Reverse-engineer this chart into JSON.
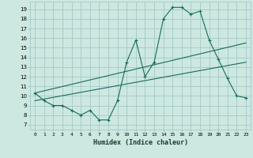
{
  "title": "",
  "xlabel": "Humidex (Indice chaleur)",
  "bg_color": "#cce8e0",
  "grid_color": "#aacccc",
  "line_color": "#1a6b5a",
  "xlim": [
    -0.5,
    23.5
  ],
  "ylim": [
    6.5,
    19.8
  ],
  "yticks": [
    7,
    8,
    9,
    10,
    11,
    12,
    13,
    14,
    15,
    16,
    17,
    18,
    19
  ],
  "xticks": [
    0,
    1,
    2,
    3,
    4,
    5,
    6,
    7,
    8,
    9,
    10,
    11,
    12,
    13,
    14,
    15,
    16,
    17,
    18,
    19,
    20,
    21,
    22,
    23
  ],
  "line1_x": [
    0,
    1,
    2,
    3,
    4,
    5,
    6,
    7,
    8,
    9,
    10,
    11,
    12,
    13,
    14,
    15,
    16,
    17,
    18,
    19,
    20,
    21,
    22,
    23
  ],
  "line1_y": [
    10.3,
    9.5,
    9.0,
    9.0,
    8.5,
    8.0,
    8.5,
    7.5,
    7.5,
    9.5,
    13.5,
    15.8,
    12.0,
    13.5,
    18.0,
    19.2,
    19.2,
    18.5,
    18.8,
    15.8,
    13.8,
    11.8,
    10.0,
    9.8
  ],
  "line2_x": [
    0,
    23
  ],
  "line2_y": [
    10.3,
    15.5
  ],
  "line3_x": [
    0,
    23
  ],
  "line3_y": [
    9.5,
    13.5
  ]
}
